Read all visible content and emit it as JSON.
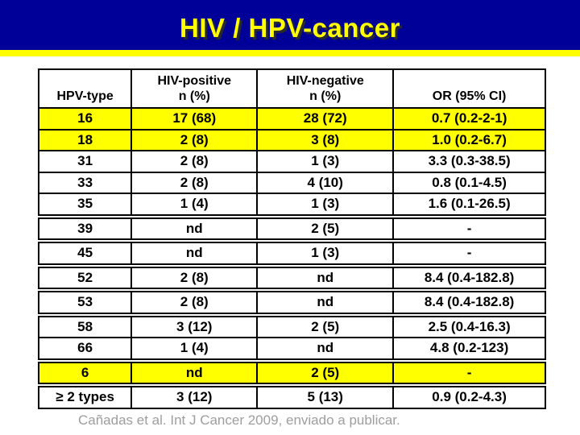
{
  "title": "HIV / HPV-cancer",
  "footer": "Cañadas et al. Int J Cancer 2009, enviado a publicar.",
  "colors": {
    "banner_bg": "#000099",
    "title_text": "#FFFF00",
    "accent_bar": "#FFFF00",
    "row_highlight": "#FFFF00",
    "table_border": "#000000",
    "footer_text": "#9E9E9E"
  },
  "table": {
    "header": {
      "hpv_type": "HPV-type",
      "hiv_positive_line1": "HIV-positive",
      "hiv_positive_line2": "n (%)",
      "hiv_negative_line1": "HIV-negative",
      "hiv_negative_line2": "n (%)",
      "or_ci": "OR (95% CI)"
    },
    "rows": [
      {
        "hpv_type": "16",
        "hiv_positive": "17 (68)",
        "hiv_negative": "28 (72)",
        "or_ci": "0.7 (0.2-2-1)",
        "highlight": true,
        "gap": false
      },
      {
        "hpv_type": "18",
        "hiv_positive": "2 (8)",
        "hiv_negative": "3 (8)",
        "or_ci": "1.0 (0.2-6.7)",
        "highlight": true,
        "gap": false
      },
      {
        "hpv_type": "31",
        "hiv_positive": "2 (8)",
        "hiv_negative": "1 (3)",
        "or_ci": "3.3 (0.3-38.5)",
        "highlight": false,
        "gap": false
      },
      {
        "hpv_type": "33",
        "hiv_positive": "2 (8)",
        "hiv_negative": "4 (10)",
        "or_ci": "0.8 (0.1-4.5)",
        "highlight": false,
        "gap": false
      },
      {
        "hpv_type": "35",
        "hiv_positive": "1 (4)",
        "hiv_negative": "1 (3)",
        "or_ci": "1.6 (0.1-26.5)",
        "highlight": false,
        "gap": false
      },
      {
        "hpv_type": "39",
        "hiv_positive": "nd",
        "hiv_negative": "2 (5)",
        "or_ci": "-",
        "highlight": false,
        "gap": true
      },
      {
        "hpv_type": "45",
        "hiv_positive": "nd",
        "hiv_negative": "1 (3)",
        "or_ci": "-",
        "highlight": false,
        "gap": true
      },
      {
        "hpv_type": "52",
        "hiv_positive": "2 (8)",
        "hiv_negative": "nd",
        "or_ci": "8.4 (0.4-182.8)",
        "highlight": false,
        "gap": true
      },
      {
        "hpv_type": "53",
        "hiv_positive": "2 (8)",
        "hiv_negative": "nd",
        "or_ci": "8.4 (0.4-182.8)",
        "highlight": false,
        "gap": true
      },
      {
        "hpv_type": "58",
        "hiv_positive": "3 (12)",
        "hiv_negative": "2 (5)",
        "or_ci": "2.5 (0.4-16.3)",
        "highlight": false,
        "gap": true
      },
      {
        "hpv_type": "66",
        "hiv_positive": "1 (4)",
        "hiv_negative": "nd",
        "or_ci": "4.8 (0.2-123)",
        "highlight": false,
        "gap": false
      },
      {
        "hpv_type": "6",
        "hiv_positive": "nd",
        "hiv_negative": "2 (5)",
        "or_ci": "-",
        "highlight": true,
        "gap": true
      },
      {
        "hpv_type": "≥ 2 types",
        "hiv_positive": "3 (12)",
        "hiv_negative": "5 (13)",
        "or_ci": "0.9 (0.2-4.3)",
        "highlight": false,
        "gap": true
      }
    ]
  }
}
